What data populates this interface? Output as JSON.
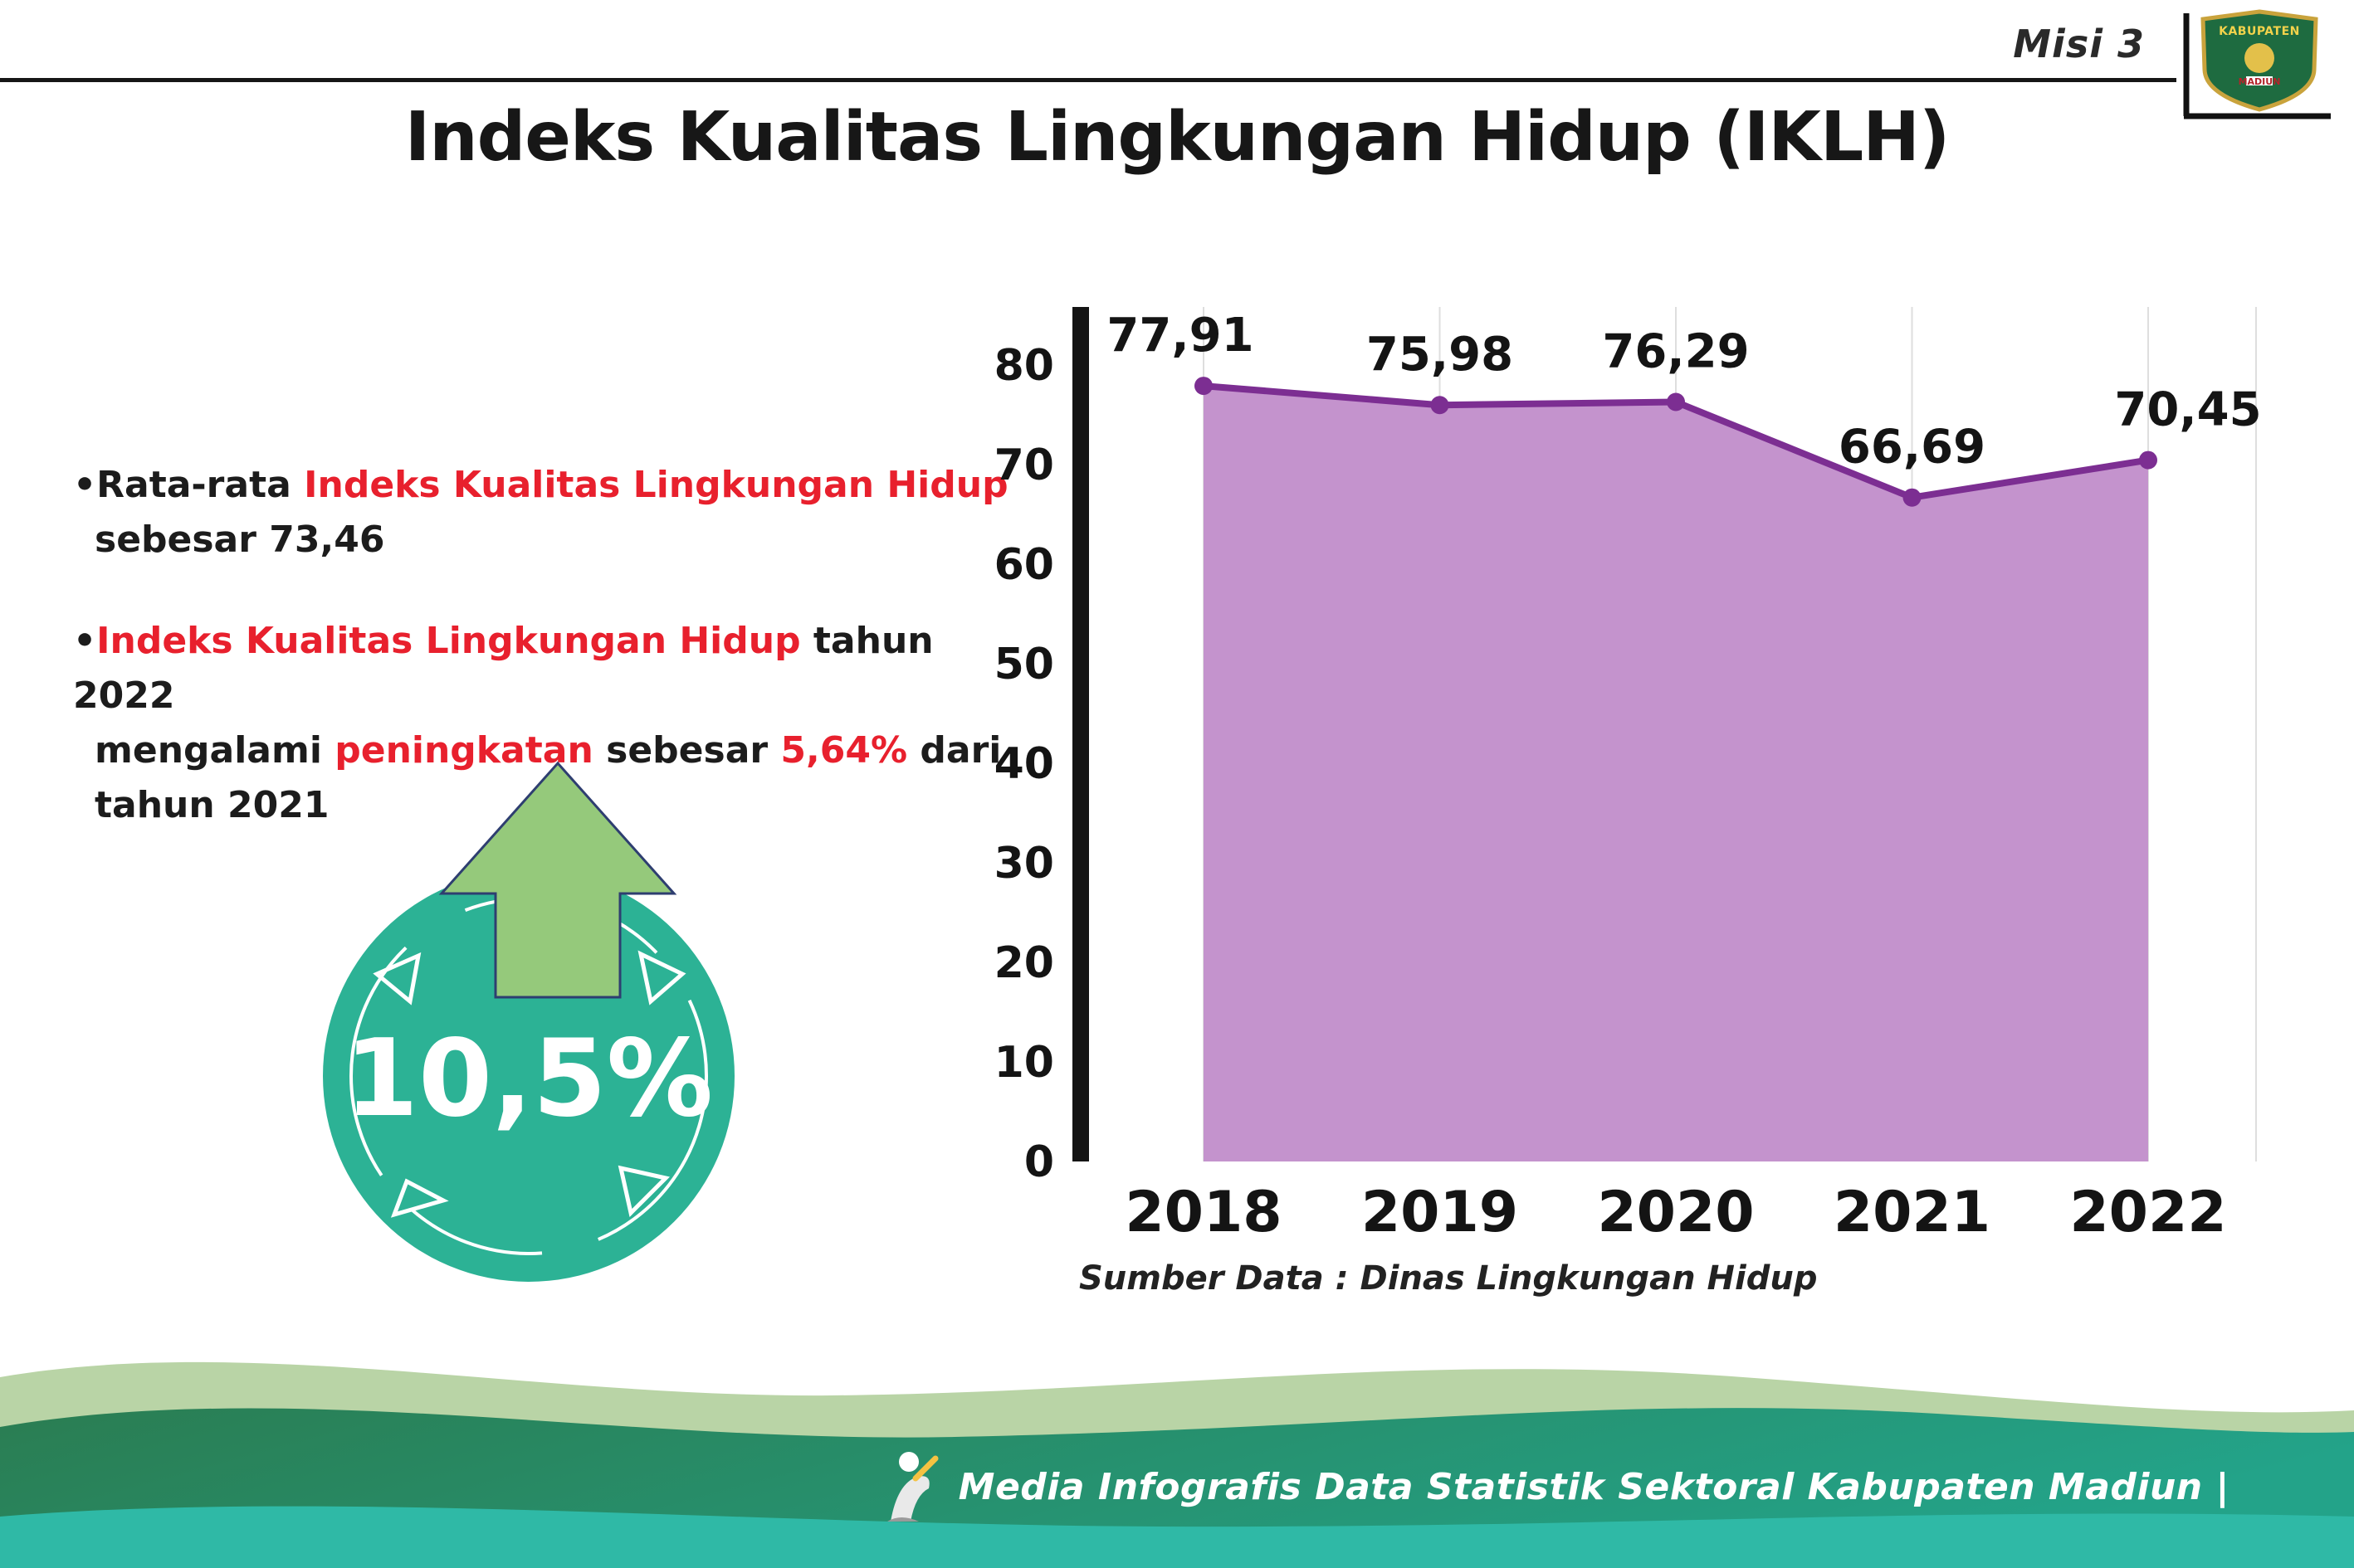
{
  "header": {
    "misi": "Misi 3",
    "title": "Indeks Kualitas Lingkungan Hidup (IKLH)",
    "logo_top": "KABUPATEN",
    "logo_bottom": "MADIUN"
  },
  "bullets": {
    "b1": {
      "bullet": "•",
      "black1": "Rata-rata ",
      "red1": "Indeks Kualitas Lingkungan Hidup",
      "black2": "sebesar 73,46"
    },
    "b2": {
      "bullet": "•",
      "red1": "Indeks Kualitas Lingkungan Hidup",
      "black1": " tahun 2022",
      "black2": "mengalami ",
      "red2": "peningkatan",
      "black3": " sebesar ",
      "red3": "5,64%",
      "black4": " dari",
      "black5": "tahun 2021"
    }
  },
  "badge": {
    "value": "10,5%"
  },
  "chart_data": {
    "type": "area",
    "categories": [
      "2018",
      "2019",
      "2020",
      "2021",
      "2022"
    ],
    "values": [
      77.91,
      75.98,
      76.29,
      66.69,
      70.45
    ],
    "labels": [
      "77,91",
      "75,98",
      "76,29",
      "66,69",
      "70,45"
    ],
    "yticks": [
      0,
      10,
      20,
      30,
      40,
      50,
      60,
      70,
      80
    ],
    "ylim": [
      0,
      85
    ],
    "grid": "vertical-light",
    "legend": "none",
    "line_color": "#7c2e92",
    "fill_color": "#c493cd",
    "source": "Sumber Data : Dinas Lingkungan Hidup"
  },
  "footer": {
    "caption": "Media Infografis Data Statistik Sektoral Kabupaten Madiun |"
  },
  "colors": {
    "accent_red": "#e8202d",
    "badge_teal": "#2cb295",
    "arrow_green": "#95c97b",
    "footer_sage": "#b9d4a6",
    "footer_green": "#2a7d52",
    "footer_teal": "#2fb9a6"
  }
}
